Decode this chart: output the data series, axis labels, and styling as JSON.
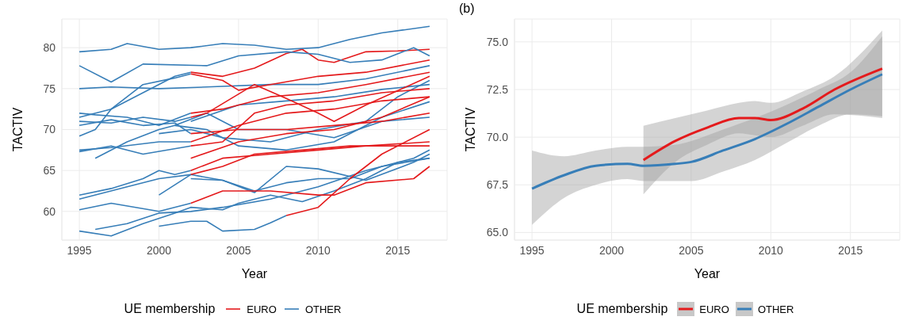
{
  "chart_data": [
    {
      "type": "line",
      "xlabel": "Year",
      "ylabel": "TACTIV",
      "legend_title": "UE membership",
      "legend": "bottom",
      "grid": true,
      "xlim": [
        1993.9,
        2018.1
      ],
      "xticks": [
        1995,
        2000,
        2005,
        2010,
        2015
      ],
      "ylim": [
        56.5,
        83.5
      ],
      "yticks": [
        60,
        65,
        70,
        75,
        80
      ],
      "series": [
        {
          "name": "EURO",
          "color": "#e41a1c",
          "x": [
            2002,
            2004,
            2006,
            2008,
            2009,
            2010,
            2011,
            2013,
            2015,
            2017
          ],
          "values": [
            77,
            76.5,
            77.5,
            79.3,
            79.8,
            78.5,
            78.2,
            79.5,
            79.6,
            79.8
          ]
        },
        {
          "name": "OTHER",
          "color": "#377eb8",
          "x": [
            1995,
            1997,
            1998,
            2000,
            2002,
            2004,
            2006,
            2008,
            2010,
            2012,
            2014,
            2017
          ],
          "values": [
            79.5,
            79.8,
            80.5,
            79.8,
            80,
            80.5,
            80.3,
            79.8,
            80,
            81,
            81.8,
            82.6
          ]
        },
        {
          "color": "#377eb8",
          "x": [
            1995,
            1997,
            1999,
            2003,
            2005,
            2008,
            2010,
            2012,
            2014,
            2016,
            2017
          ],
          "values": [
            77.8,
            75.8,
            78,
            77.8,
            79,
            79.5,
            79.2,
            78.2,
            78.5,
            80,
            79
          ]
        },
        {
          "color": "#377eb8",
          "x": [
            1995,
            1997,
            2000,
            2003,
            2007,
            2010,
            2013,
            2017
          ],
          "values": [
            75,
            75.2,
            75,
            75.2,
            75.5,
            75.5,
            76.2,
            77.8
          ]
        },
        {
          "color": "#377eb8",
          "x": [
            1995,
            1996,
            1997,
            1999,
            2001,
            2002
          ],
          "values": [
            69.2,
            70,
            72.5,
            74.5,
            76.5,
            77
          ]
        },
        {
          "color": "#377eb8",
          "x": [
            1995,
            1997,
            1999,
            2001,
            2002
          ],
          "values": [
            71.5,
            72.5,
            75.5,
            76.3,
            76.8
          ]
        },
        {
          "color": "#377eb8",
          "x": [
            1995,
            1996,
            1998,
            2000,
            2002
          ],
          "values": [
            72,
            71.8,
            71.5,
            70.5,
            72
          ]
        },
        {
          "color": "#377eb8",
          "x": [
            1995,
            1997,
            1999,
            2001,
            2002
          ],
          "values": [
            71,
            70.8,
            71.5,
            71,
            71.5
          ]
        },
        {
          "color": "#377eb8",
          "x": [
            1995,
            1997,
            1999,
            2001,
            2002
          ],
          "values": [
            70.5,
            71.2,
            70.5,
            70.8,
            69.5
          ]
        },
        {
          "color": "#377eb8",
          "x": [
            1995,
            1997,
            2000,
            2002
          ],
          "values": [
            67.5,
            67.8,
            68.5,
            68.5
          ]
        },
        {
          "color": "#377eb8",
          "x": [
            1995,
            1997,
            1999,
            2002
          ],
          "values": [
            67.3,
            68,
            67,
            68
          ]
        },
        {
          "color": "#377eb8",
          "x": [
            1995,
            1997,
            1999,
            2000,
            2001,
            2002
          ],
          "values": [
            62,
            62.8,
            64,
            65,
            64.5,
            65
          ]
        },
        {
          "color": "#377eb8",
          "x": [
            1995,
            1998,
            2000,
            2002
          ],
          "values": [
            61.5,
            63,
            64,
            64.5
          ]
        },
        {
          "color": "#377eb8",
          "x": [
            1995,
            1997,
            2000,
            2002
          ],
          "values": [
            60.2,
            61,
            60,
            61
          ]
        },
        {
          "color": "#377eb8",
          "x": [
            2000,
            2002,
            2003,
            2004,
            2006,
            2007,
            2008
          ],
          "values": [
            58.2,
            58.8,
            58.8,
            57.6,
            57.8,
            58.6,
            59.5
          ]
        },
        {
          "color": "#377eb8",
          "x": [
            1995,
            1997,
            1999,
            2001,
            2002,
            2004,
            2005,
            2007,
            2009,
            2011,
            2013,
            2015,
            2017
          ],
          "values": [
            57.6,
            57,
            58.5,
            59.8,
            60.5,
            60.2,
            61,
            62,
            61.2,
            62.5,
            64,
            66,
            66.5
          ]
        },
        {
          "color": "#377eb8",
          "x": [
            1996,
            1998,
            2000,
            2002,
            2004,
            2007,
            2010,
            2013,
            2016,
            2017
          ],
          "values": [
            57.8,
            58.5,
            59.8,
            60,
            60.5,
            61.5,
            63,
            65,
            66.5,
            67.5
          ]
        },
        {
          "color": "#377eb8",
          "x": [
            1996,
            1998,
            2000,
            2001,
            2003,
            2005,
            2008,
            2011,
            2014,
            2017
          ],
          "values": [
            66.5,
            68.5,
            70,
            70.5,
            70,
            68,
            67.5,
            68.5,
            71.5,
            73.4
          ]
        },
        {
          "color": "#377eb8",
          "x": [
            2002,
            2004,
            2006,
            2008,
            2010,
            2012,
            2014,
            2017
          ],
          "values": [
            64,
            63.8,
            62.5,
            63.5,
            64,
            64,
            65.5,
            66.5
          ]
        },
        {
          "color": "#377eb8",
          "x": [
            2000,
            2002,
            2004,
            2006,
            2008,
            2010,
            2013,
            2016,
            2017
          ],
          "values": [
            62,
            64.5,
            63.8,
            62.3,
            65.5,
            65.2,
            63.8,
            66,
            67
          ]
        },
        {
          "color": "#377eb8",
          "x": [
            2000,
            2002,
            2004,
            2007,
            2010,
            2013,
            2015,
            2017
          ],
          "values": [
            69.5,
            70,
            69,
            68.5,
            70,
            71,
            74,
            76
          ]
        },
        {
          "color": "#377eb8",
          "x": [
            2001,
            2003,
            2005,
            2008,
            2011,
            2014,
            2017
          ],
          "values": [
            70.5,
            72,
            70,
            70,
            69,
            71,
            71.5
          ]
        },
        {
          "color": "#377eb8",
          "x": [
            2002,
            2005,
            2008,
            2011,
            2014,
            2017
          ],
          "values": [
            71,
            73,
            73.5,
            74,
            74.9,
            75.5
          ]
        },
        {
          "color": "#e41a1c",
          "x": [
            2002,
            2004,
            2005,
            2007,
            2010,
            2013,
            2017
          ],
          "values": [
            76.8,
            76,
            74.8,
            75.5,
            76.5,
            77,
            78.5
          ]
        },
        {
          "color": "#e41a1c",
          "x": [
            2002,
            2004,
            2007,
            2010,
            2013,
            2017
          ],
          "values": [
            72,
            72.5,
            74,
            74.5,
            75.5,
            77
          ]
        },
        {
          "color": "#e41a1c",
          "x": [
            2002,
            2003,
            2006,
            2008,
            2010,
            2011,
            2013,
            2017
          ],
          "values": [
            71.5,
            72,
            75.5,
            73.8,
            72,
            71,
            73,
            76.5
          ]
        },
        {
          "color": "#e41a1c",
          "x": [
            2002,
            2005,
            2008,
            2011,
            2014,
            2017
          ],
          "values": [
            69.5,
            70,
            70,
            70.5,
            71,
            72
          ]
        },
        {
          "color": "#e41a1c",
          "x": [
            2002,
            2005,
            2008,
            2011,
            2014,
            2017
          ],
          "values": [
            68.5,
            70.5,
            72,
            72.5,
            73.5,
            74
          ]
        },
        {
          "color": "#e41a1c",
          "x": [
            2002,
            2004,
            2007,
            2010,
            2013,
            2017
          ],
          "values": [
            65,
            66.5,
            67,
            67.5,
            68,
            68.5
          ]
        },
        {
          "color": "#e41a1c",
          "x": [
            2002,
            2004,
            2006,
            2009,
            2012,
            2017
          ],
          "values": [
            64.5,
            65.5,
            67,
            67.5,
            68,
            68
          ]
        },
        {
          "color": "#e41a1c",
          "x": [
            2002,
            2004,
            2007,
            2010,
            2011,
            2013,
            2016,
            2017
          ],
          "values": [
            61,
            62.5,
            62.5,
            62,
            62,
            63.5,
            64,
            65.5
          ]
        },
        {
          "color": "#e41a1c",
          "x": [
            2008,
            2010,
            2012,
            2014,
            2017
          ],
          "values": [
            59.5,
            60.5,
            64,
            67,
            70
          ]
        },
        {
          "color": "#e41a1c",
          "x": [
            2002,
            2004,
            2006,
            2008,
            2011,
            2014,
            2017
          ],
          "values": [
            68,
            68.5,
            72,
            73,
            73.5,
            74.5,
            75
          ]
        },
        {
          "color": "#e41a1c",
          "x": [
            2002,
            2005,
            2008,
            2011,
            2014,
            2017
          ],
          "values": [
            66.5,
            68.5,
            69.5,
            70,
            71.5,
            74
          ]
        }
      ]
    },
    {
      "type": "line",
      "annotations": [
        "(b)"
      ],
      "xlabel": "Year",
      "ylabel": "TACTIV",
      "legend_title": "UE membership",
      "legend": "bottom",
      "grid": true,
      "xlim": [
        1993.9,
        2018.1
      ],
      "xticks": [
        1995,
        2000,
        2005,
        2010,
        2015
      ],
      "ylim": [
        64.6,
        76.2
      ],
      "yticks": [
        {
          "value": 65,
          "label": "65.0"
        },
        {
          "value": 67.5,
          "label": "67.5"
        },
        {
          "value": 70,
          "label": "70.0"
        },
        {
          "value": 72.5,
          "label": "72.5"
        },
        {
          "value": 75,
          "label": "75.0"
        }
      ],
      "series": [
        {
          "name": "EURO",
          "color": "#e41a1c",
          "x": [
            2002,
            2004,
            2006,
            2008,
            2009,
            2010,
            2012,
            2014,
            2017
          ],
          "values": [
            68.8,
            69.8,
            70.5,
            71,
            71,
            70.9,
            71.5,
            72.5,
            73.6
          ],
          "lower": [
            67,
            68.7,
            69.6,
            70.2,
            70.1,
            70,
            70.6,
            71.2,
            71
          ],
          "upper": [
            70.6,
            71,
            71.4,
            71.8,
            71.9,
            71.8,
            72.4,
            73.2,
            75.6
          ]
        },
        {
          "name": "OTHER",
          "color": "#377eb8",
          "x": [
            1995,
            1997,
            1999,
            2001,
            2002,
            2004,
            2005,
            2007,
            2009,
            2011,
            2013,
            2015,
            2017
          ],
          "values": [
            67.3,
            68,
            68.5,
            68.6,
            68.5,
            68.6,
            68.7,
            69.3,
            69.9,
            70.7,
            71.6,
            72.5,
            73.3
          ],
          "lower": [
            65.4,
            66.8,
            67.5,
            67.8,
            67.7,
            67.7,
            67.7,
            68.2,
            68.8,
            69.7,
            70.6,
            71.2,
            71.1
          ],
          "upper": [
            69.3,
            69,
            69.3,
            69.5,
            69.5,
            69.6,
            69.8,
            70.4,
            71,
            71.7,
            72.5,
            73.4,
            75.3
          ]
        }
      ]
    }
  ]
}
